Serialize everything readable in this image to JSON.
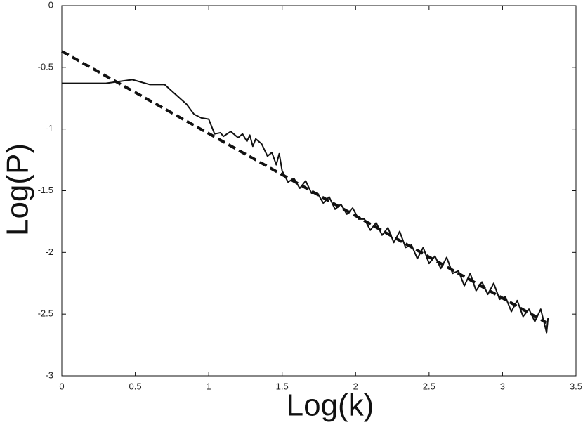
{
  "chart_data": {
    "type": "line",
    "xlabel": "Log(k)",
    "ylabel": "Log(P)",
    "xlim": [
      0,
      3.5
    ],
    "xticks": [
      0,
      0.5,
      1,
      1.5,
      2,
      2.5,
      3,
      3.5
    ],
    "ylim": [
      -3,
      0
    ],
    "yticks": [
      -3,
      -2.5,
      -2,
      -1.5,
      -1,
      -0.5,
      0
    ],
    "series": [
      {
        "color": "#111111",
        "style": "solid",
        "x": [
          0,
          0.3,
          0.48,
          0.6,
          0.7,
          0.85,
          0.9,
          0.95,
          1.0,
          1.04,
          1.08,
          1.1,
          1.15,
          1.2,
          1.23,
          1.26,
          1.28,
          1.3,
          1.32,
          1.36,
          1.4,
          1.43,
          1.46,
          1.48,
          1.5,
          1.54,
          1.58,
          1.62,
          1.66,
          1.7,
          1.74,
          1.78,
          1.82,
          1.86,
          1.9,
          1.94,
          1.98,
          2.02,
          2.06,
          2.1,
          2.14,
          2.18,
          2.22,
          2.26,
          2.3,
          2.34,
          2.38,
          2.42,
          2.46,
          2.5,
          2.54,
          2.58,
          2.62,
          2.66,
          2.7,
          2.74,
          2.78,
          2.82,
          2.86,
          2.9,
          2.94,
          2.98,
          3.02,
          3.06,
          3.1,
          3.14,
          3.18,
          3.22,
          3.26,
          3.3,
          3.31
        ],
        "values": [
          -0.63,
          -0.63,
          -0.6,
          -0.64,
          -0.64,
          -0.8,
          -0.88,
          -0.91,
          -0.92,
          -1.04,
          -1.03,
          -1.06,
          -1.02,
          -1.07,
          -1.04,
          -1.1,
          -1.05,
          -1.14,
          -1.08,
          -1.12,
          -1.22,
          -1.19,
          -1.29,
          -1.2,
          -1.34,
          -1.43,
          -1.4,
          -1.48,
          -1.42,
          -1.52,
          -1.52,
          -1.6,
          -1.55,
          -1.65,
          -1.61,
          -1.69,
          -1.64,
          -1.73,
          -1.73,
          -1.82,
          -1.76,
          -1.86,
          -1.8,
          -1.92,
          -1.83,
          -1.96,
          -1.94,
          -2.05,
          -1.96,
          -2.09,
          -2.03,
          -2.13,
          -2.04,
          -2.17,
          -2.15,
          -2.27,
          -2.17,
          -2.31,
          -2.24,
          -2.34,
          -2.25,
          -2.38,
          -2.36,
          -2.48,
          -2.39,
          -2.52,
          -2.46,
          -2.56,
          -2.46,
          -2.65,
          -2.53
        ]
      },
      {
        "color": "#111111",
        "style": "dashed",
        "x": [
          0,
          3.3
        ],
        "values": [
          -0.37,
          -2.57
        ]
      }
    ]
  }
}
